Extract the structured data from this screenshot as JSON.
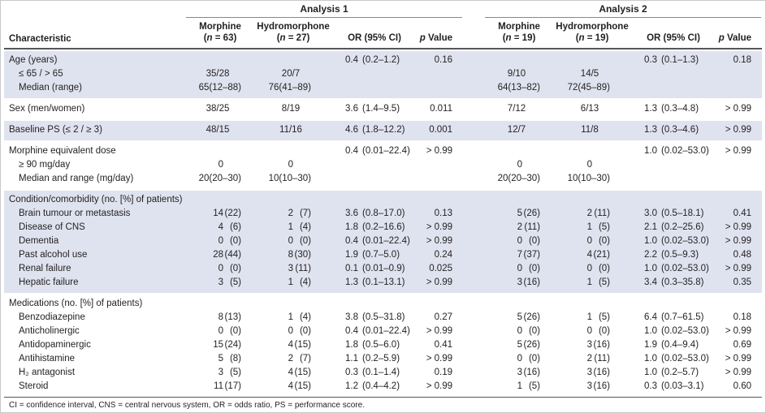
{
  "colors": {
    "row_shade": "#dfe3ef",
    "rule_dark": "#55565b",
    "text": "#231f20"
  },
  "header": {
    "characteristic": "Characteristic",
    "groups": [
      {
        "title": "Analysis 1",
        "cols": [
          {
            "name": "Morphine",
            "n_open": "(",
            "n_var": "n",
            "n_rest": " = 63)"
          },
          {
            "name": "Hydromorphone",
            "n_open": "(",
            "n_var": "n",
            "n_rest": " = 27)"
          }
        ],
        "or": "OR (95% CI)",
        "p_var": "p",
        "p_rest": " Value"
      },
      {
        "title": "Analysis 2",
        "cols": [
          {
            "name": "Morphine",
            "n_open": "(",
            "n_var": "n",
            "n_rest": " = 19)"
          },
          {
            "name": "Hydromorphone",
            "n_open": "(",
            "n_var": "n",
            "n_rest": " = 19)"
          }
        ],
        "or": "OR (95% CI)",
        "p_var": "p",
        "p_rest": " Value"
      }
    ]
  },
  "sections": [
    {
      "shaded": true,
      "rows": [
        {
          "label": "Age (years)",
          "a1": {
            "or_v": "0.4",
            "or_ci": "(0.2–1.2)",
            "p": "0.16"
          },
          "a2": {
            "or_v": "0.3",
            "or_ci": "(0.1–1.3)",
            "p": "0.18"
          }
        },
        {
          "label": "≤ 65 / > 65",
          "indent": true,
          "a1": {
            "m_c": "35/28",
            "h_c": "20/7"
          },
          "a2": {
            "m_c": "9/10",
            "h_c": "14/5"
          }
        },
        {
          "label": "Median (range)",
          "indent": true,
          "a1": {
            "m_v": "65",
            "m_p": "(12–88)",
            "h_v": "76",
            "h_p": "(41–89)"
          },
          "a2": {
            "m_v": "64",
            "m_p": "(13–82)",
            "h_v": "72",
            "h_p": "(45–89)"
          }
        }
      ]
    },
    {
      "shaded": false,
      "rows": [
        {
          "label": "Sex (men/women)",
          "a1": {
            "m_c": "38/25",
            "h_c": "8/19",
            "or_v": "3.6",
            "or_ci": "(1.4–9.5)",
            "p": "0.011"
          },
          "a2": {
            "m_c": "7/12",
            "h_c": "6/13",
            "or_v": "1.3",
            "or_ci": "(0.3–4.8)",
            "p": "> 0.99"
          }
        }
      ]
    },
    {
      "shaded": true,
      "rows": [
        {
          "label": "Baseline PS (≤ 2 / ≥ 3)",
          "a1": {
            "m_c": "48/15",
            "h_c": "11/16",
            "or_v": "4.6",
            "or_ci": "(1.8–12.2)",
            "p": "0.001"
          },
          "a2": {
            "m_c": "12/7",
            "h_c": "11/8",
            "or_v": "1.3",
            "or_ci": "(0.3–4.6)",
            "p": "> 0.99"
          }
        }
      ]
    },
    {
      "shaded": false,
      "rows": [
        {
          "label": "Morphine equivalent dose",
          "a1": {
            "or_v": "0.4",
            "or_ci": "(0.01–22.4)",
            "p": "> 0.99"
          },
          "a2": {
            "or_v": "1.0",
            "or_ci": "(0.02–53.0)",
            "p": "> 0.99"
          }
        },
        {
          "label": "≥ 90 mg/day",
          "indent": true,
          "a1": {
            "m_v": "0",
            "h_v": "0"
          },
          "a2": {
            "m_v": "0",
            "h_v": "0"
          }
        },
        {
          "label": "Median and range (mg/day)",
          "indent": true,
          "a1": {
            "m_v": "20",
            "m_p": "(20–30)",
            "h_v": "10",
            "h_p": "(10–30)"
          },
          "a2": {
            "m_v": "20",
            "m_p": "(20–30)",
            "h_v": "10",
            "h_p": "(10–30)"
          }
        }
      ]
    },
    {
      "shaded": true,
      "rows": [
        {
          "label": "Condition/comorbidity (no. [%] of patients)"
        },
        {
          "label": "Brain tumour or metastasis",
          "indent": true,
          "a1": {
            "m_v": "14",
            "m_p": "(22)",
            "h_v": "2",
            "h_p": "(7)",
            "or_v": "3.6",
            "or_ci": "(0.8–17.0)",
            "p": "0.13"
          },
          "a2": {
            "m_v": "5",
            "m_p": "(26)",
            "h_v": "2",
            "h_p": "(11)",
            "or_v": "3.0",
            "or_ci": "(0.5–18.1)",
            "p": "0.41"
          }
        },
        {
          "label": "Disease of CNS",
          "indent": true,
          "a1": {
            "m_v": "4",
            "m_p": "(6)",
            "h_v": "1",
            "h_p": "(4)",
            "or_v": "1.8",
            "or_ci": "(0.2–16.6)",
            "p": "> 0.99"
          },
          "a2": {
            "m_v": "2",
            "m_p": "(11)",
            "h_v": "1",
            "h_p": "(5)",
            "or_v": "2.1",
            "or_ci": "(0.2–25.6)",
            "p": "> 0.99"
          }
        },
        {
          "label": "Dementia",
          "indent": true,
          "a1": {
            "m_v": "0",
            "m_p": "(0)",
            "h_v": "0",
            "h_p": "(0)",
            "or_v": "0.4",
            "or_ci": "(0.01–22.4)",
            "p": "> 0.99"
          },
          "a2": {
            "m_v": "0",
            "m_p": "(0)",
            "h_v": "0",
            "h_p": "(0)",
            "or_v": "1.0",
            "or_ci": "(0.02–53.0)",
            "p": "> 0.99"
          }
        },
        {
          "label": "Past alcohol use",
          "indent": true,
          "a1": {
            "m_v": "28",
            "m_p": "(44)",
            "h_v": "8",
            "h_p": "(30)",
            "or_v": "1.9",
            "or_ci": "(0.7–5.0)",
            "p": "0.24"
          },
          "a2": {
            "m_v": "7",
            "m_p": "(37)",
            "h_v": "4",
            "h_p": "(21)",
            "or_v": "2.2",
            "or_ci": "(0.5–9.3)",
            "p": "0.48"
          }
        },
        {
          "label": "Renal failure",
          "indent": true,
          "a1": {
            "m_v": "0",
            "m_p": "(0)",
            "h_v": "3",
            "h_p": "(11)",
            "or_v": "0.1",
            "or_ci": "(0.01–0.9)",
            "p": "0.025"
          },
          "a2": {
            "m_v": "0",
            "m_p": "(0)",
            "h_v": "0",
            "h_p": "(0)",
            "or_v": "1.0",
            "or_ci": "(0.02–53.0)",
            "p": "> 0.99"
          }
        },
        {
          "label": "Hepatic failure",
          "indent": true,
          "a1": {
            "m_v": "3",
            "m_p": "(5)",
            "h_v": "1",
            "h_p": "(4)",
            "or_v": "1.3",
            "or_ci": "(0.1–13.1)",
            "p": "> 0.99"
          },
          "a2": {
            "m_v": "3",
            "m_p": "(16)",
            "h_v": "1",
            "h_p": "(5)",
            "or_v": "3.4",
            "or_ci": "(0.3–35.8)",
            "p": "0.35"
          }
        }
      ]
    },
    {
      "shaded": false,
      "rows": [
        {
          "label": "Medications (no. [%] of patients)"
        },
        {
          "label": "Benzodiazepine",
          "indent": true,
          "a1": {
            "m_v": "8",
            "m_p": "(13)",
            "h_v": "1",
            "h_p": "(4)",
            "or_v": "3.8",
            "or_ci": "(0.5–31.8)",
            "p": "0.27"
          },
          "a2": {
            "m_v": "5",
            "m_p": "(26)",
            "h_v": "1",
            "h_p": "(5)",
            "or_v": "6.4",
            "or_ci": "(0.7–61.5)",
            "p": "0.18"
          }
        },
        {
          "label": "Anticholinergic",
          "indent": true,
          "a1": {
            "m_v": "0",
            "m_p": "(0)",
            "h_v": "0",
            "h_p": "(0)",
            "or_v": "0.4",
            "or_ci": "(0.01–22.4)",
            "p": "> 0.99"
          },
          "a2": {
            "m_v": "0",
            "m_p": "(0)",
            "h_v": "0",
            "h_p": "(0)",
            "or_v": "1.0",
            "or_ci": "(0.02–53.0)",
            "p": "> 0.99"
          }
        },
        {
          "label": "Antidopaminergic",
          "indent": true,
          "a1": {
            "m_v": "15",
            "m_p": "(24)",
            "h_v": "4",
            "h_p": "(15)",
            "or_v": "1.8",
            "or_ci": "(0.5–6.0)",
            "p": "0.41"
          },
          "a2": {
            "m_v": "5",
            "m_p": "(26)",
            "h_v": "3",
            "h_p": "(16)",
            "or_v": "1.9",
            "or_ci": "(0.4–9.4)",
            "p": "0.69"
          }
        },
        {
          "label": "Antihistamine",
          "indent": true,
          "a1": {
            "m_v": "5",
            "m_p": "(8)",
            "h_v": "2",
            "h_p": "(7)",
            "or_v": "1.1",
            "or_ci": "(0.2–5.9)",
            "p": "> 0.99"
          },
          "a2": {
            "m_v": "0",
            "m_p": "(0)",
            "h_v": "2",
            "h_p": "(11)",
            "or_v": "1.0",
            "or_ci": "(0.02–53.0)",
            "p": "> 0.99"
          }
        },
        {
          "label": "H₂ antagonist",
          "indent": true,
          "a1": {
            "m_v": "3",
            "m_p": "(5)",
            "h_v": "4",
            "h_p": "(15)",
            "or_v": "0.3",
            "or_ci": "(0.1–1.4)",
            "p": "0.19"
          },
          "a2": {
            "m_v": "3",
            "m_p": "(16)",
            "h_v": "3",
            "h_p": "(16)",
            "or_v": "1.0",
            "or_ci": "(0.2–5.7)",
            "p": "> 0.99"
          }
        },
        {
          "label": "Steroid",
          "indent": true,
          "a1": {
            "m_v": "11",
            "m_p": "(17)",
            "h_v": "4",
            "h_p": "(15)",
            "or_v": "1.2",
            "or_ci": "(0.4–4.2)",
            "p": "> 0.99"
          },
          "a2": {
            "m_v": "1",
            "m_p": "(5)",
            "h_v": "3",
            "h_p": "(16)",
            "or_v": "0.3",
            "or_ci": "(0.03–3.1)",
            "p": "0.60"
          }
        }
      ]
    }
  ],
  "footnote": "CI = confidence interval, CNS = central nervous system, OR = odds ratio, PS = performance score."
}
